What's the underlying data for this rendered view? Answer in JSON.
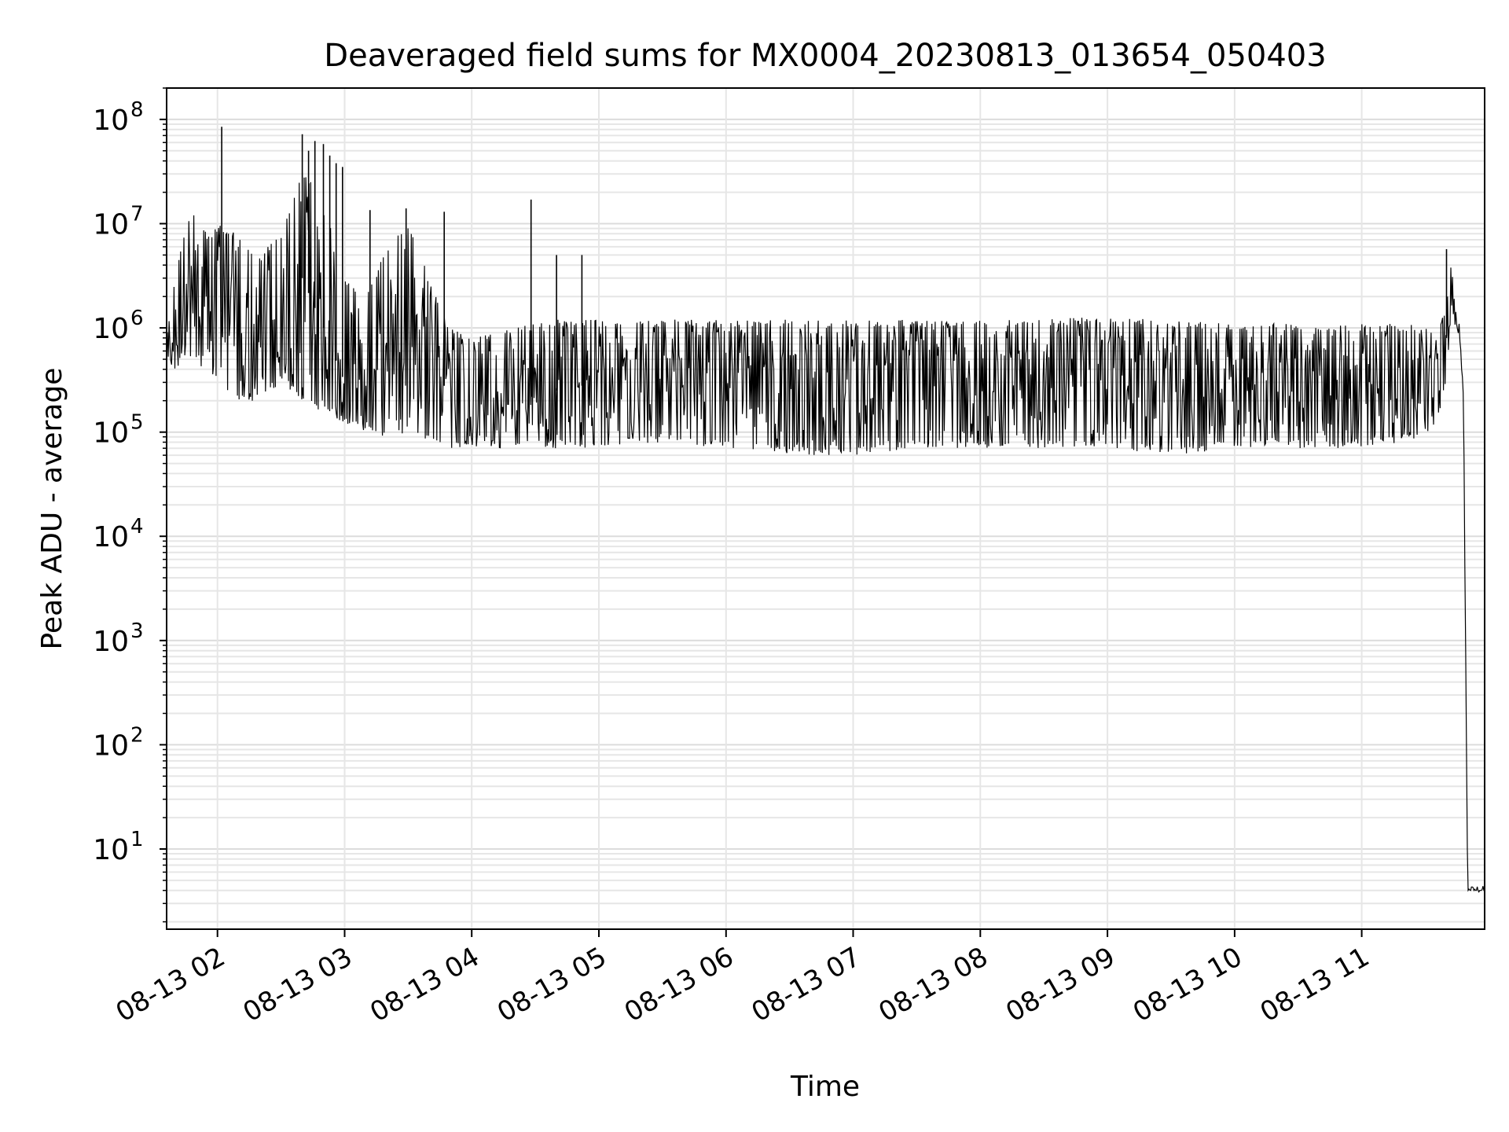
{
  "chart_data": {
    "type": "line",
    "title": "Deaveraged field sums for MX0004_20230813_013654_050403",
    "xlabel": "Time",
    "ylabel": "Peak ADU - average",
    "yscale": "log",
    "ylim": [
      1.7,
      200000000
    ],
    "xlim": [
      "2023-08-13 01:36",
      "2023-08-13 11:58"
    ],
    "grid": true,
    "line_color": "#000000",
    "x_ticks": [
      "08-13 02",
      "08-13 03",
      "08-13 04",
      "08-13 05",
      "08-13 06",
      "08-13 07",
      "08-13 08",
      "08-13 09",
      "08-13 10",
      "08-13 11"
    ],
    "y_ticks": [
      {
        "base": "10",
        "exp": "1",
        "value": 10
      },
      {
        "base": "10",
        "exp": "2",
        "value": 100
      },
      {
        "base": "10",
        "exp": "3",
        "value": 1000
      },
      {
        "base": "10",
        "exp": "4",
        "value": 10000
      },
      {
        "base": "10",
        "exp": "5",
        "value": 100000
      },
      {
        "base": "10",
        "exp": "6",
        "value": 1000000
      },
      {
        "base": "10",
        "exp": "7",
        "value": 10000000
      },
      {
        "base": "10",
        "exp": "8",
        "value": 100000000
      }
    ],
    "series": [
      {
        "x": [
          "2023-08-13 01:36",
          "2023-08-13 01:40",
          "2023-08-13 01:45",
          "2023-08-13 01:50",
          "2023-08-13 01:55",
          "2023-08-13 02:00",
          "2023-08-13 02:10",
          "2023-08-13 02:20",
          "2023-08-13 02:30",
          "2023-08-13 02:40",
          "2023-08-13 02:50",
          "2023-08-13 03:00",
          "2023-08-13 03:10",
          "2023-08-13 03:20",
          "2023-08-13 03:30",
          "2023-08-13 03:40",
          "2023-08-13 03:50",
          "2023-08-13 04:00",
          "2023-08-13 04:20",
          "2023-08-13 04:40",
          "2023-08-13 05:00",
          "2023-08-13 05:30",
          "2023-08-13 06:00",
          "2023-08-13 06:30",
          "2023-08-13 07:00",
          "2023-08-13 07:30",
          "2023-08-13 08:00",
          "2023-08-13 08:30",
          "2023-08-13 09:00",
          "2023-08-13 09:30",
          "2023-08-13 10:00",
          "2023-08-13 10:30",
          "2023-08-13 11:00",
          "2023-08-13 11:20",
          "2023-08-13 11:35",
          "2023-08-13 11:40",
          "2023-08-13 11:42",
          "2023-08-13 11:44",
          "2023-08-13 11:46",
          "2023-08-13 11:48",
          "2023-08-13 11:50",
          "2023-08-13 11:58"
        ],
        "y": [
          700000,
          700000,
          1000000,
          1200000,
          1500000,
          1400000,
          1500000,
          1000000,
          1200000,
          3000000,
          1000000,
          300000,
          400000,
          500000,
          800000,
          600000,
          200000,
          150000,
          200000,
          250000,
          300000,
          400000,
          400000,
          500000,
          400000,
          500000,
          400000,
          500000,
          600000,
          400000,
          300000,
          300000,
          300000,
          300000,
          500000,
          800000,
          1500000,
          1300000,
          1000000,
          200000,
          4,
          4
        ],
        "lo": [
          500000,
          400000,
          500000,
          500000,
          300000,
          300000,
          200000,
          200000,
          300000,
          200000,
          150000,
          120000,
          100000,
          90000,
          100000,
          80000,
          70000,
          70000,
          70000,
          70000,
          70000,
          80000,
          70000,
          60000,
          60000,
          70000,
          70000,
          70000,
          70000,
          60000,
          70000,
          70000,
          70000,
          80000,
          100000,
          300000,
          1000000,
          1000000,
          800000,
          200000,
          4,
          4
        ],
        "hi": [
          800000,
          3000000,
          10000000,
          15000000,
          8000000,
          10000000,
          8000000,
          5000000,
          8000000,
          30000000,
          20000000,
          3000000,
          2000000,
          6000000,
          10000000,
          3000000,
          1000000,
          800000,
          1000000,
          1200000,
          1200000,
          1200000,
          1200000,
          1200000,
          1200000,
          1200000,
          1200000,
          1200000,
          1300000,
          1200000,
          1100000,
          1100000,
          1100000,
          1100000,
          1000000,
          1500000,
          5700000,
          1500000,
          1200000,
          300000,
          4.4,
          4.4
        ]
      }
    ],
    "spikes": [
      {
        "x": "2023-08-13 02:02",
        "y": 85000000
      },
      {
        "x": "2023-08-13 02:40",
        "y": 72000000
      },
      {
        "x": "2023-08-13 02:43",
        "y": 50000000
      },
      {
        "x": "2023-08-13 02:46",
        "y": 62000000
      },
      {
        "x": "2023-08-13 02:50",
        "y": 58000000
      },
      {
        "x": "2023-08-13 02:53",
        "y": 45000000
      },
      {
        "x": "2023-08-13 02:56",
        "y": 38000000
      },
      {
        "x": "2023-08-13 02:59",
        "y": 35000000
      },
      {
        "x": "2023-08-13 03:12",
        "y": 13500000
      },
      {
        "x": "2023-08-13 03:29",
        "y": 14000000
      },
      {
        "x": "2023-08-13 03:47",
        "y": 13000000
      },
      {
        "x": "2023-08-13 04:28",
        "y": 17000000
      },
      {
        "x": "2023-08-13 04:40",
        "y": 5000000
      },
      {
        "x": "2023-08-13 04:52",
        "y": 5000000
      },
      {
        "x": "2023-08-13 11:40",
        "y": 5700000
      }
    ]
  }
}
